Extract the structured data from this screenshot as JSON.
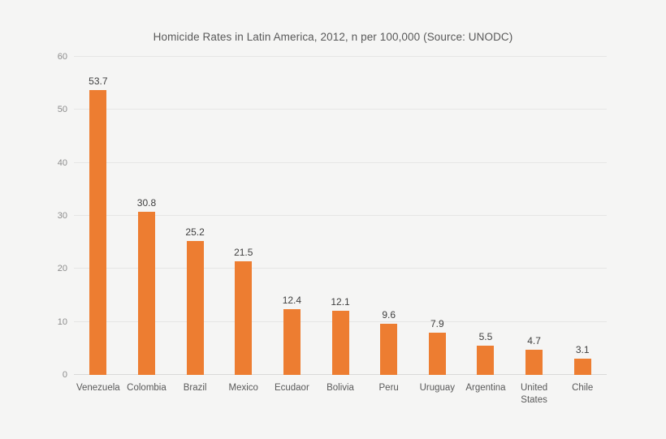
{
  "title": "Homicide Rates in Latin America, 2012, n per 100,000 (Source: UNODC)",
  "chart_data": {
    "type": "bar",
    "title": "Homicide Rates in Latin America, 2012, n per 100,000 (Source: UNODC)",
    "categories": [
      "Venezuela",
      "Colombia",
      "Brazil",
      "Mexico",
      "Ecudaor",
      "Bolivia",
      "Peru",
      "Uruguay",
      "Argentina",
      "United States",
      "Chile"
    ],
    "values": [
      53.7,
      30.8,
      25.2,
      21.5,
      12.4,
      12.1,
      9.6,
      7.9,
      5.5,
      4.7,
      3.1
    ],
    "data_labels": [
      "53.7",
      "30.8",
      "25.2",
      "21.5",
      "12.4",
      "12.1",
      "9.6",
      "7.9",
      "5.5",
      "4.7",
      "3.1"
    ],
    "xlabel": "",
    "ylabel": "",
    "ylim": [
      0,
      60
    ],
    "yticks": [
      0,
      10,
      20,
      30,
      40,
      50,
      60
    ],
    "grid": true,
    "legend": false,
    "bar_color": "#ED7D31",
    "background_color": "#f5f5f4",
    "gridline_color": "#e6e6e5",
    "axis_line_color": "#d9d9d8",
    "title_color": "#595959",
    "tick_label_color": "#8c8c8c",
    "category_label_color": "#595959",
    "value_label_color": "#3f3f3f"
  }
}
